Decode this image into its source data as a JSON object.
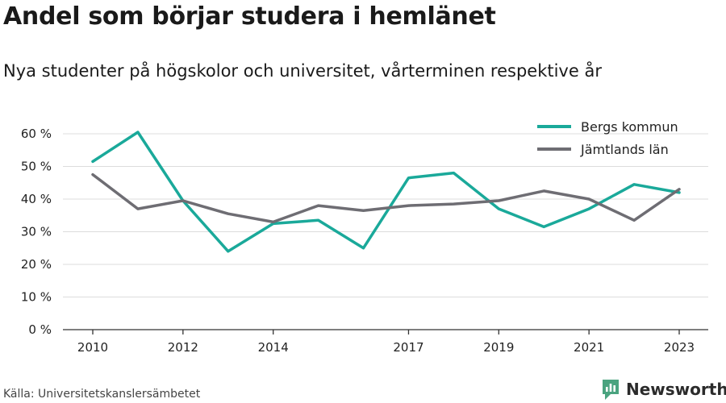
{
  "title": "Andel som börjar studera i hemlänet",
  "subtitle": "Nya studenter på högskolor och universitet, vårterminen respektive år",
  "source": "Källa: Universitetskanslersämbetet",
  "brand": "Newsworthy",
  "chart_data": {
    "type": "line",
    "x": [
      2010,
      2011,
      2012,
      2013,
      2014,
      2015,
      2016,
      2017,
      2018,
      2019,
      2020,
      2021,
      2022,
      2023
    ],
    "x_tick_values": [
      2010,
      2012,
      2014,
      2017,
      2019,
      2021,
      2023
    ],
    "x_tick_labels": [
      "2010",
      "2012",
      "2014",
      "2017",
      "2019",
      "2021",
      "2023"
    ],
    "y_tick_values": [
      0,
      10,
      20,
      30,
      40,
      50,
      60
    ],
    "y_tick_labels": [
      "0 %",
      "10 %",
      "20 %",
      "30 %",
      "40 %",
      "50 %",
      "60 %"
    ],
    "ylim": [
      0,
      60
    ],
    "grid": true,
    "legend_position": "top-right",
    "series": [
      {
        "name": "Bergs kommun",
        "color": "#1aa99a",
        "values": [
          51.5,
          60.5,
          39.5,
          24,
          32.5,
          33.5,
          25,
          46.5,
          48,
          37,
          31.5,
          37,
          44.5,
          42
        ]
      },
      {
        "name": "Jämtlands län",
        "color": "#6e6d73",
        "values": [
          47.5,
          37,
          39.5,
          35.5,
          33,
          38,
          36.5,
          38,
          38.5,
          39.5,
          42.5,
          40,
          33.5,
          43
        ]
      }
    ]
  }
}
